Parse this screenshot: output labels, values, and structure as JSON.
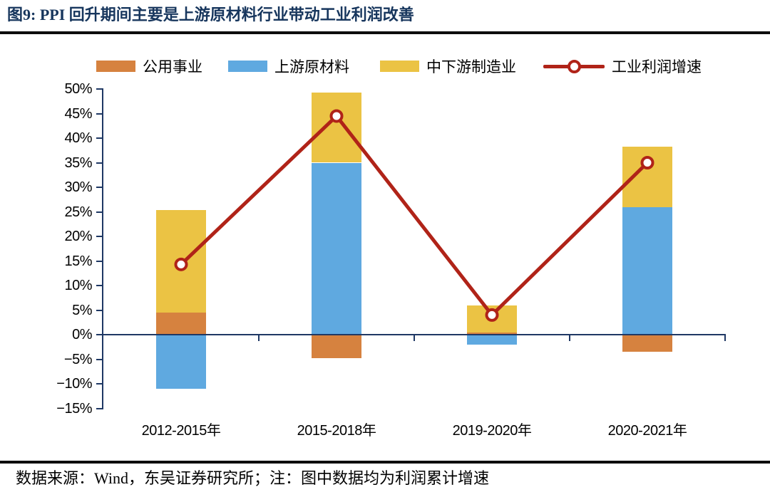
{
  "figure": {
    "title": "图9: PPI 回升期间主要是上游原材料行业带动工业利润改善",
    "source_note": "数据来源：Wind，东吴证券研究所；注：图中数据均为利润累计增速"
  },
  "colors": {
    "title": "#17365D",
    "axis": "#1F3864",
    "rule": "#0d0d0d",
    "label_text": "#000000",
    "utilities": "#D6823F",
    "upstream": "#5FA9E0",
    "midstream": "#EBC344",
    "profit_line": "#B02318",
    "marker_fill": "#FFFFFF"
  },
  "chart_data": {
    "type": "combo: stacked vertical bars + line with circle markers",
    "title": "PPI 回升期间主要是上游原材料行业带动工业利润改善",
    "unit": "%  (利润累计增速)",
    "categories": [
      "2012-2015年",
      "2015-2018年",
      "2019-2020年",
      "2020-2021年"
    ],
    "bar_series": [
      {
        "key": "utilities",
        "name": "公用事业",
        "values": [
          4.5,
          -4.8,
          0.5,
          -3.5
        ]
      },
      {
        "key": "upstream",
        "name": "上游原材料",
        "values": [
          -11,
          35,
          -2,
          26
        ]
      },
      {
        "key": "midstream",
        "name": "中下游制造业",
        "values": [
          20.8,
          14.3,
          5.4,
          12.3
        ]
      }
    ],
    "line_series": {
      "key": "profit_line",
      "name": "工业利润增速",
      "values": [
        14.3,
        44.5,
        4,
        35
      ]
    },
    "stack_totals_positive": [
      25.3,
      49.3,
      5.9,
      38.3
    ],
    "stack_totals_negative": [
      -11,
      -4.8,
      -2,
      -3.5
    ],
    "y_axis": {
      "max": 50,
      "min": -15,
      "step": 5,
      "tick_labels": [
        "50%",
        "45%",
        "40%",
        "35%",
        "30%",
        "25%",
        "20%",
        "15%",
        "10%",
        "5%",
        "0%",
        "−5%",
        "−10%",
        "−15%"
      ]
    },
    "x_axis": {
      "baseline_value": 0,
      "tick_marks_below_baseline": true
    },
    "grid": false,
    "legend_position": "top"
  }
}
